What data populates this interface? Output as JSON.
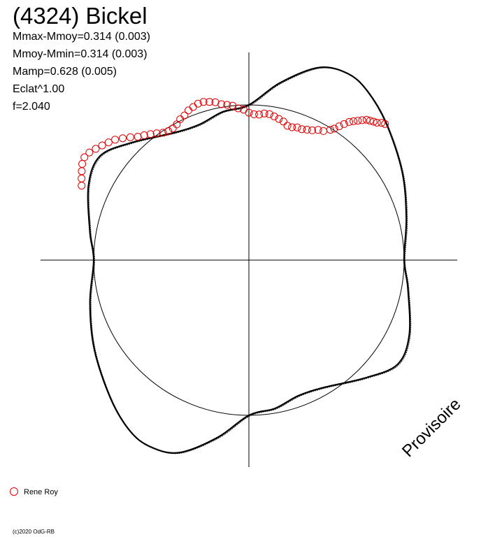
{
  "title": "(4324) Bickel",
  "stats": [
    "Mmax-Mmoy=0.314 (0.003)",
    "Mmoy-Mmin=0.314 (0.003)",
    "Mamp=0.628 (0.005)",
    "Eclat^1.00",
    "f=2.040"
  ],
  "watermark": "Provisoire",
  "copyright": "(c)2020 OdG-RB",
  "colors": {
    "series": "#e00000",
    "model": "#000000",
    "axes": "#000000"
  },
  "chart_data": {
    "type": "scatter",
    "projection": "polar lightcurve",
    "title": "(4324) Bickel",
    "legend": {
      "position": "bottom-left",
      "entries": [
        "Rene Roy"
      ]
    },
    "reference_circle_radius": 1.0,
    "model_curve": {
      "description": "polar light curve model, radius in units of reference circle",
      "points_r_theta_deg": [
        [
          1.0,
          0
        ],
        [
          1.05,
          15
        ],
        [
          1.14,
          30
        ],
        [
          1.25,
          45
        ],
        [
          1.33,
          55
        ],
        [
          1.36,
          62
        ],
        [
          1.32,
          70
        ],
        [
          1.16,
          80
        ],
        [
          1.0,
          90
        ],
        [
          0.97,
          100
        ],
        [
          0.93,
          110
        ],
        [
          0.95,
          120
        ],
        [
          1.07,
          135
        ],
        [
          1.17,
          145
        ],
        [
          1.14,
          155
        ],
        [
          1.04,
          170
        ],
        [
          1.0,
          180
        ],
        [
          1.06,
          195
        ],
        [
          1.15,
          210
        ],
        [
          1.26,
          225
        ],
        [
          1.34,
          235
        ],
        [
          1.36,
          242
        ],
        [
          1.32,
          250
        ],
        [
          1.16,
          260
        ],
        [
          1.0,
          270
        ],
        [
          0.97,
          280
        ],
        [
          0.93,
          290
        ],
        [
          0.95,
          300
        ],
        [
          1.07,
          315
        ],
        [
          1.17,
          325
        ],
        [
          1.14,
          335
        ],
        [
          1.04,
          350
        ]
      ]
    },
    "series": [
      {
        "name": "Rene Roy",
        "color": "#e00000",
        "marker": "open-circle",
        "points_r_theta_deg": [
          [
            1.24,
            45
          ],
          [
            1.23,
            46
          ],
          [
            1.21,
            47
          ],
          [
            1.2,
            48
          ],
          [
            1.19,
            49
          ],
          [
            1.18,
            50
          ],
          [
            1.16,
            51
          ],
          [
            1.14,
            52
          ],
          [
            1.12,
            53
          ],
          [
            1.1,
            54
          ],
          [
            1.07,
            55
          ],
          [
            1.04,
            56
          ],
          [
            1.01,
            57
          ],
          [
            0.99,
            58
          ],
          [
            0.96,
            60
          ],
          [
            0.95,
            62
          ],
          [
            0.93,
            64
          ],
          [
            0.92,
            66
          ],
          [
            0.91,
            68
          ],
          [
            0.91,
            70
          ],
          [
            0.9,
            72
          ],
          [
            0.9,
            74
          ],
          [
            0.92,
            76
          ],
          [
            0.93,
            78
          ],
          [
            0.94,
            80
          ],
          [
            0.95,
            82
          ],
          [
            0.95,
            84
          ],
          [
            0.94,
            86
          ],
          [
            0.94,
            88
          ],
          [
            0.95,
            90
          ],
          [
            0.97,
            92
          ],
          [
            0.98,
            94
          ],
          [
            1.0,
            96
          ],
          [
            1.01,
            98
          ],
          [
            1.02,
            100
          ],
          [
            1.04,
            102
          ],
          [
            1.05,
            104
          ],
          [
            1.06,
            106
          ],
          [
            1.06,
            108
          ],
          [
            1.05,
            110
          ],
          [
            1.04,
            112
          ],
          [
            1.02,
            114
          ],
          [
            1.01,
            116
          ],
          [
            0.99,
            118
          ],
          [
            0.98,
            120
          ],
          [
            0.98,
            122
          ],
          [
            0.99,
            124
          ],
          [
            1.01,
            126
          ],
          [
            1.03,
            128
          ],
          [
            1.05,
            130
          ],
          [
            1.07,
            132
          ],
          [
            1.1,
            134
          ],
          [
            1.13,
            136
          ],
          [
            1.16,
            138
          ],
          [
            1.18,
            140
          ],
          [
            1.2,
            142
          ],
          [
            1.22,
            144
          ],
          [
            1.24,
            146
          ],
          [
            1.25,
            148
          ],
          [
            1.24,
            150
          ],
          [
            1.22,
            152
          ],
          [
            1.2,
            154
          ],
          [
            1.18,
            156
          ]
        ]
      }
    ]
  }
}
